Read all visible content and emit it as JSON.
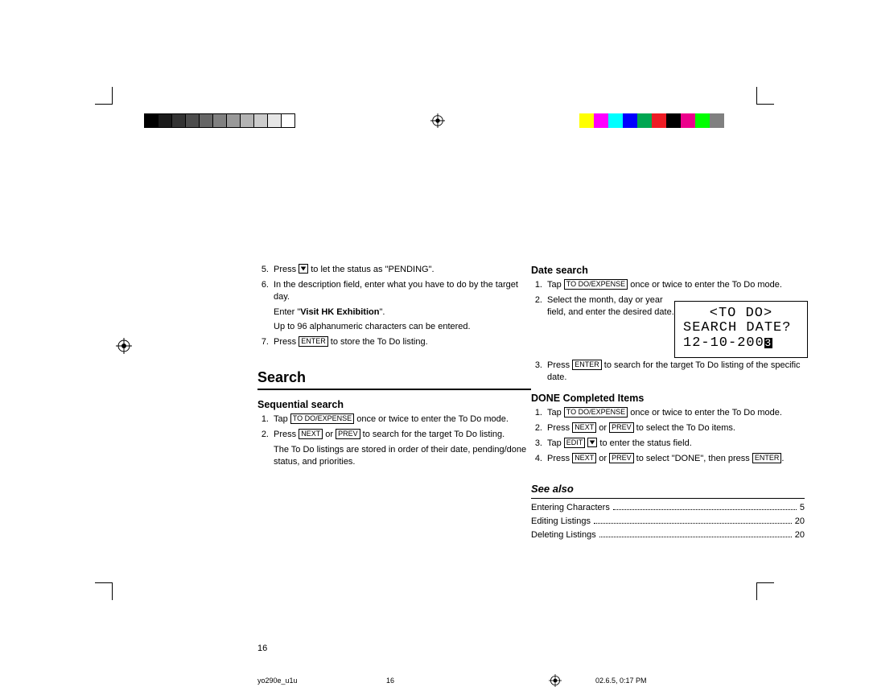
{
  "colorbar": {
    "grayscale": [
      "#000000",
      "#1a1a1a",
      "#333333",
      "#4d4d4d",
      "#666666",
      "#808080",
      "#999999",
      "#b3b3b3",
      "#cccccc",
      "#e6e6e6",
      "#ffffff"
    ],
    "colors": [
      "#ffff00",
      "#ff00ff",
      "#00ffff",
      "#0000ff",
      "#00a651",
      "#ed1c24",
      "#000000",
      "#ec008c",
      "#00ff00",
      "#808080"
    ]
  },
  "keys": {
    "enter": "ENTER",
    "todo_expense": "TO DO/EXPENSE",
    "next": "NEXT",
    "prev": "PREV",
    "edit": "EDIT"
  },
  "left": {
    "step5_a": "Press ",
    "step5_b": " to let the status as \"PENDING\".",
    "step6": "In the description field, enter what you have to do by the target day.",
    "step6_example_a": "Enter \"",
    "step6_example_b": "Visit HK Exhibition",
    "step6_example_c": "\".",
    "step6_note": "Up to 96 alphanumeric characters can be entered.",
    "step7_a": "Press ",
    "step7_b": " to store the To Do listing.",
    "search_heading": "Search",
    "seq_heading": "Sequential search",
    "seq1_a": "Tap ",
    "seq1_b": " once or twice to enter the To Do mode.",
    "seq2_a": "Press ",
    "seq2_b": " or ",
    "seq2_c": " to search for the target To Do listing.",
    "seq_note": "The To Do listings are stored in order of their date, pending/done status, and priorities."
  },
  "right": {
    "date_heading": "Date search",
    "d1_a": "Tap ",
    "d1_b": " once or twice to enter the To Do mode.",
    "d2": "Select the month, day or year field, and enter the desired date.",
    "d3_a": "Press ",
    "d3_b": " to search for the target To Do listing of the specific date.",
    "done_heading": "DONE Completed Items",
    "c1_a": "Tap ",
    "c1_b": " once or twice to enter the To Do mode.",
    "c2_a": "Press ",
    "c2_b": " or ",
    "c2_c": " to select the To Do items.",
    "c3_a": "Tap ",
    "c3_b": " ",
    "c3_c": " to enter the status field.",
    "c4_a": "Press ",
    "c4_b": " or ",
    "c4_c": " to select \"DONE\", then press ",
    "c4_d": ".",
    "seealso_heading": "See also",
    "seealso": [
      {
        "label": "Entering Characters",
        "page": "5"
      },
      {
        "label": "Editing Listings",
        "page": "20"
      },
      {
        "label": "Deleting Listings",
        "page": "20"
      }
    ]
  },
  "lcd": {
    "l1": "<TO DO>",
    "l2": "SEARCH DATE?",
    "l3a": "12-10-200",
    "l3b": "3"
  },
  "page_number": "16",
  "footer": {
    "file": "yo290e_u1u",
    "page": "16",
    "date": "02.6.5, 0:17 PM"
  }
}
